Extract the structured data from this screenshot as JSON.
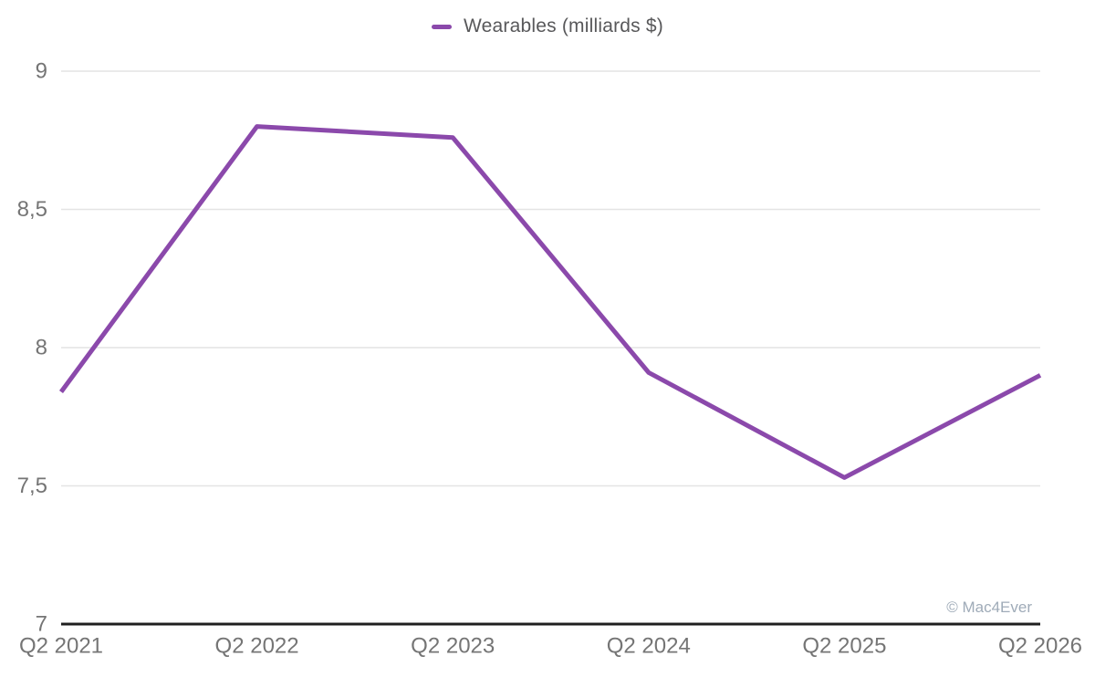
{
  "watermark": "© Mac4Ever",
  "chart_data": {
    "type": "line",
    "title": "",
    "legend": "Wearables (milliards $)",
    "legend_position": "top-center",
    "categories": [
      "Q2 2021",
      "Q2 2022",
      "Q2 2023",
      "Q2 2024",
      "Q2 2025",
      "Q2 2026"
    ],
    "series": [
      {
        "name": "Wearables (milliards $)",
        "values": [
          7.84,
          8.8,
          8.76,
          7.91,
          7.53,
          7.9
        ]
      }
    ],
    "xlabel": "",
    "ylabel": "",
    "ylim": [
      7,
      9
    ],
    "y_ticks": [
      {
        "value": 9,
        "label": "9"
      },
      {
        "value": 8.5,
        "label": "8,5"
      },
      {
        "value": 8,
        "label": "8"
      },
      {
        "value": 7.5,
        "label": "7,5"
      },
      {
        "value": 7,
        "label": "7"
      }
    ],
    "grid": true,
    "line_color": "#8b49ab",
    "grid_color": "#e4e4e4",
    "axis_color": "#1f1f1f",
    "tick_color": "#757575"
  }
}
